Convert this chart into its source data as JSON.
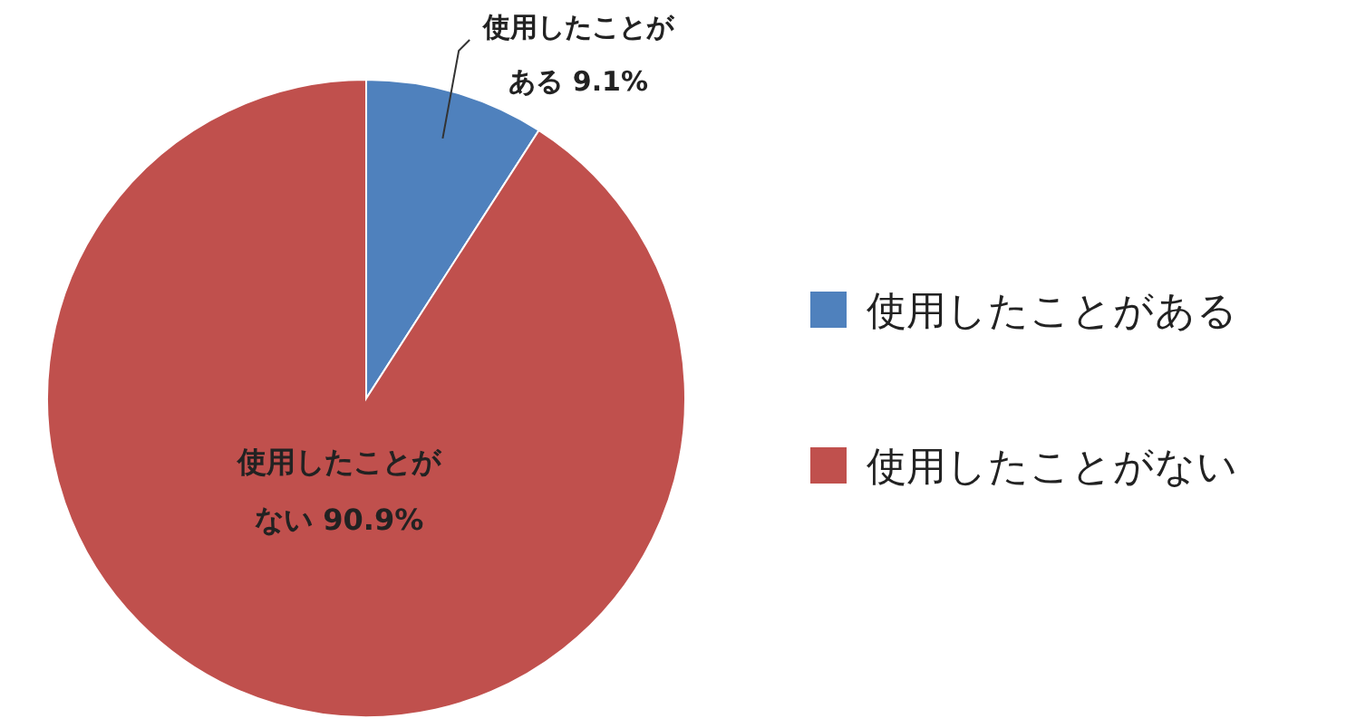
{
  "chart_data": {
    "type": "pie",
    "categories": [
      "使用したことがある",
      "使用したことがない"
    ],
    "values": [
      9.1,
      90.9
    ],
    "colors": [
      "#4f81bd",
      "#c0504d"
    ],
    "value_labels": [
      "9.1%",
      "90.9%"
    ],
    "legend": "right"
  }
}
